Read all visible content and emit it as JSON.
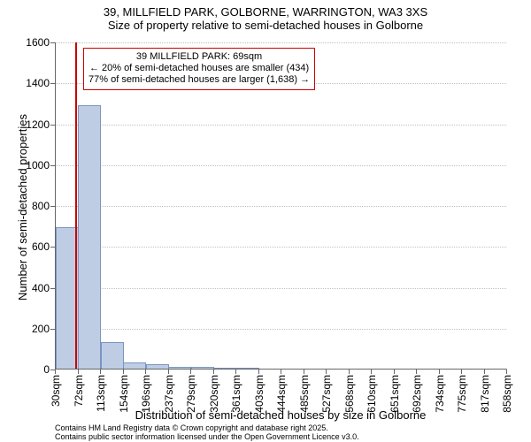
{
  "title": {
    "line1": "39, MILLFIELD PARK, GOLBORNE, WARRINGTON, WA3 3XS",
    "line2": "Size of property relative to semi-detached houses in Golborne"
  },
  "y_axis": {
    "label": "Number of semi-detached properties",
    "ticks": [
      0,
      200,
      400,
      600,
      800,
      1000,
      1200,
      1400,
      1600
    ],
    "min": 0,
    "max": 1600
  },
  "x_axis": {
    "label": "Distribution of semi-detached houses by size in Golborne",
    "ticks": [
      "30sqm",
      "72sqm",
      "113sqm",
      "154sqm",
      "196sqm",
      "237sqm",
      "279sqm",
      "320sqm",
      "361sqm",
      "403sqm",
      "444sqm",
      "485sqm",
      "527sqm",
      "568sqm",
      "610sqm",
      "651sqm",
      "692sqm",
      "734sqm",
      "775sqm",
      "817sqm",
      "858sqm"
    ]
  },
  "bars": {
    "values": [
      690,
      1290,
      130,
      30,
      20,
      10,
      10,
      5,
      5,
      2,
      2,
      2,
      2,
      2,
      2,
      2,
      2,
      2,
      2,
      2
    ],
    "fill": "#becde4",
    "stroke": "#7a94c2",
    "width_ratio": 0.95
  },
  "highlight": {
    "value_sqm": 69,
    "x_min": 30,
    "x_max": 858,
    "color": "#cc0000"
  },
  "annotation": {
    "line1": "39 MILLFIELD PARK: 69sqm",
    "line2": "← 20% of semi-detached houses are smaller (434)",
    "line3": "77% of semi-detached houses are larger (1,638) →",
    "border_color": "#cc0000"
  },
  "grid": {
    "color": "#c0c0c0"
  },
  "style": {
    "title_fontsize": 13,
    "axis_label_fontsize": 13,
    "tick_fontsize": 12,
    "annotation_fontsize": 11,
    "footer_fontsize": 9
  },
  "footer": {
    "line1": "Contains HM Land Registry data © Crown copyright and database right 2025.",
    "line2": "Contains public sector information licensed under the Open Government Licence v3.0."
  },
  "background_color": "#ffffff"
}
